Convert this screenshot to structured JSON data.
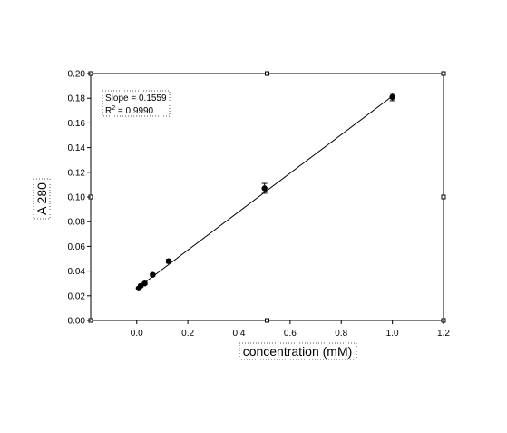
{
  "chart_data": {
    "type": "scatter",
    "title": "",
    "xlabel": "concentration (mM)",
    "ylabel": "A 280",
    "xlim": [
      -0.18,
      1.2
    ],
    "ylim": [
      0,
      0.2
    ],
    "x_ticks": [
      "0.0",
      "0.2",
      "0.4",
      "0.6",
      "0.8",
      "1.0",
      "1.2"
    ],
    "y_ticks": [
      "0.00",
      "0.02",
      "0.04",
      "0.06",
      "0.08",
      "0.10",
      "0.12",
      "0.14",
      "0.16",
      "0.18",
      "0.20"
    ],
    "grid": false,
    "series": [
      {
        "x": [
          0.0078,
          0.0156,
          0.03125,
          0.0625,
          0.125,
          0.5,
          1.0
        ],
        "y": [
          0.026,
          0.028,
          0.03,
          0.037,
          0.048,
          0.107,
          0.181
        ],
        "yerr": [
          0.001,
          0.001,
          0.001,
          0.001,
          0.0015,
          0.004,
          0.003
        ]
      }
    ],
    "fit_line": {
      "x": [
        0.0,
        1.0
      ],
      "y": [
        0.0258,
        0.1817
      ]
    },
    "annotations": {
      "slope": "Slope = 0.1559",
      "r2_prefix": "R",
      "r2_sup": "2",
      "r2_value": " =  0.9990"
    }
  }
}
